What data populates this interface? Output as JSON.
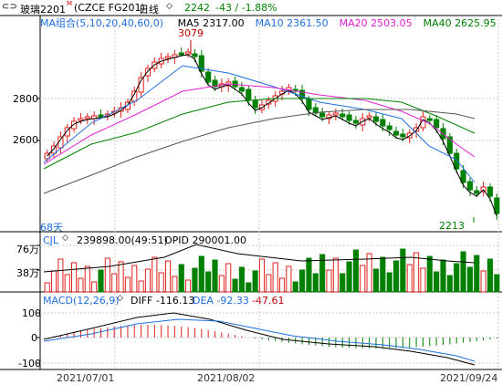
{
  "header": {
    "symbol_name": "玻璃2201",
    "symbol_code": "(CZCE FG201)",
    "period": "日线",
    "price": "2242",
    "change": "-43 / -1.88%",
    "change_color": "#008000",
    "menu_icon": "glasses-icon"
  },
  "ma_legend": {
    "label": "MA组合(5,10,20,40,60,0)",
    "items": [
      {
        "label": "MA5 2317.00",
        "color": "#000000"
      },
      {
        "label": "MA10 2361.50",
        "color": "#1f6fe0"
      },
      {
        "label": "MA20 2503.05",
        "color": "#e020d0"
      },
      {
        "label": "MA40 2625.95",
        "color": "#008000"
      }
    ]
  },
  "price_pane": {
    "y_ticks": [
      "2800",
      "2600"
    ],
    "high_label": "3079",
    "low_label": "2213",
    "days_label": "68天"
  },
  "volume_pane": {
    "label": "CJL",
    "value": "239898.00(49:51)",
    "opid": "OPID 290001.00",
    "y_ticks": [
      "76万",
      "38万"
    ]
  },
  "macd_pane": {
    "label": "MACD(12,26,9)",
    "diff": "DIFF -116.13",
    "dea": "DEA -92.33",
    "macd": "-47.61",
    "y_ticks": [
      "100",
      "0",
      "-100"
    ]
  },
  "x_axis": {
    "dates": [
      "2021/07/01",
      "2021/08/02",
      "2021/09/24"
    ]
  },
  "colors": {
    "up": "#e0201c",
    "down": "#008000",
    "grid": "#c8c8c8"
  }
}
